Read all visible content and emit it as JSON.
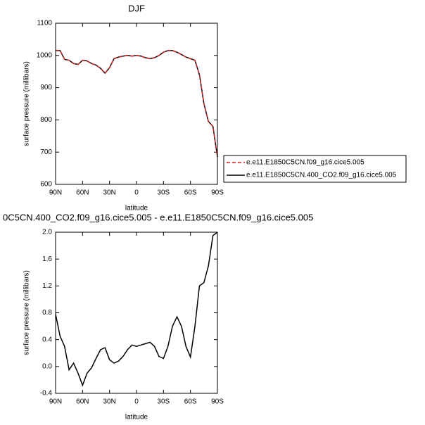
{
  "chart_data": [
    {
      "type": "line",
      "title": "DJF",
      "xlabel": "latitude",
      "ylabel": "surface pressure (millibars)",
      "x": [
        90,
        85,
        80,
        75,
        70,
        65,
        60,
        55,
        50,
        45,
        40,
        35,
        30,
        25,
        20,
        15,
        10,
        5,
        0,
        -5,
        -10,
        -15,
        -20,
        -25,
        -30,
        -35,
        -40,
        -45,
        -50,
        -55,
        -60,
        -65,
        -70,
        -75,
        -80,
        -85,
        -90
      ],
      "xlim": [
        90,
        -90
      ],
      "xticks": [
        {
          "value": 90,
          "label": "90N"
        },
        {
          "value": 60,
          "label": "60N"
        },
        {
          "value": 30,
          "label": "30N"
        },
        0,
        {
          "value": -30,
          "label": "30S"
        },
        {
          "value": -60,
          "label": "60S"
        },
        {
          "value": -90,
          "label": "90S"
        }
      ],
      "ylim": [
        600,
        1100
      ],
      "yticks": [
        600,
        700,
        800,
        900,
        1000,
        1100
      ],
      "series": [
        {
          "name": "e.e11.E1850C5CN.f09_g16.cice5.005",
          "color": "#cc2222",
          "dash": true,
          "values": [
            1015,
            1015,
            988,
            985,
            975,
            972,
            985,
            983,
            975,
            970,
            960,
            945,
            962,
            990,
            995,
            998,
            1000,
            998,
            1000,
            998,
            993,
            990,
            993,
            1000,
            1010,
            1015,
            1015,
            1010,
            1003,
            995,
            990,
            985,
            940,
            850,
            795,
            780,
            685
          ]
        },
        {
          "name": "e.e11.E1850C5CN.400_CO2.f09_g16.cice5.005",
          "color": "#000000",
          "dash": false,
          "values": [
            1015,
            1015,
            988,
            985,
            975,
            972,
            985,
            983,
            975,
            970,
            960,
            945,
            962,
            990,
            995,
            998,
            1000,
            998,
            1000,
            998,
            993,
            990,
            993,
            1000,
            1010,
            1015,
            1015,
            1010,
            1003,
            995,
            990,
            985,
            940,
            850,
            795,
            780,
            685
          ]
        }
      ]
    },
    {
      "type": "line",
      "title": "0C5CN.400_CO2.f09_g16.cice5.005 - e.e11.E1850C5CN.f09_g16.cice5.005",
      "xlabel": "latitude",
      "ylabel": "surface pressure (millibars)",
      "x": [
        90,
        85,
        80,
        75,
        70,
        65,
        60,
        55,
        50,
        45,
        40,
        35,
        30,
        25,
        20,
        15,
        10,
        5,
        0,
        -5,
        -10,
        -15,
        -20,
        -25,
        -30,
        -35,
        -40,
        -45,
        -50,
        -55,
        -60,
        -65,
        -70,
        -75,
        -80,
        -85,
        -90
      ],
      "xlim": [
        90,
        -90
      ],
      "xticks": [
        {
          "value": 90,
          "label": "90N"
        },
        {
          "value": 60,
          "label": "60N"
        },
        {
          "value": 30,
          "label": "30N"
        },
        0,
        {
          "value": -30,
          "label": "30S"
        },
        {
          "value": -60,
          "label": "60S"
        },
        {
          "value": -90,
          "label": "90S"
        }
      ],
      "ylim": [
        -0.4,
        2.0
      ],
      "yticks": [
        -0.4,
        {
          "value": 0,
          "label": "0.0"
        },
        0.4,
        0.8,
        1.2,
        1.6,
        {
          "value": 2,
          "label": "2.0"
        }
      ],
      "series": [
        {
          "color": "#000000",
          "dash": false,
          "values": [
            0.78,
            0.45,
            0.3,
            -0.05,
            0.05,
            -0.1,
            -0.28,
            -0.1,
            -0.02,
            0.12,
            0.25,
            0.28,
            0.1,
            0.05,
            0.08,
            0.15,
            0.25,
            0.32,
            0.3,
            0.32,
            0.34,
            0.36,
            0.3,
            0.15,
            0.12,
            0.3,
            0.6,
            0.74,
            0.6,
            0.3,
            0.14,
            0.6,
            1.2,
            1.25,
            1.5,
            1.95,
            2.0
          ]
        }
      ]
    }
  ]
}
